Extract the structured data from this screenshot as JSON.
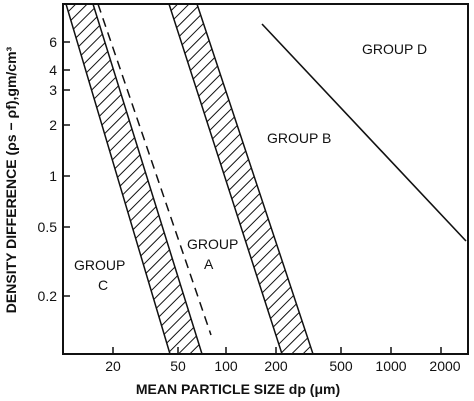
{
  "chart_data": {
    "type": "diagram",
    "xlabel": "MEAN PARTICLE SIZE dp (μm)",
    "ylabel": "DENSITY DIFFERENCE (ρs − ρf),gm/cm³",
    "x_scale": "log",
    "y_scale": "log",
    "x_ticks": [
      "20",
      "50",
      "100",
      "200",
      "500",
      "1000",
      "2000"
    ],
    "y_ticks": [
      "6",
      "4",
      "3",
      "2",
      "1",
      "0.5",
      "0.2"
    ],
    "regions": [
      {
        "label_line1": "GROUP",
        "label_line2": "C"
      },
      {
        "label_line1": "GROUP",
        "label_line2": "A"
      },
      {
        "label_line1": "GROUP B",
        "label_line2": ""
      },
      {
        "label_line1": "GROUP D",
        "label_line2": ""
      }
    ]
  }
}
